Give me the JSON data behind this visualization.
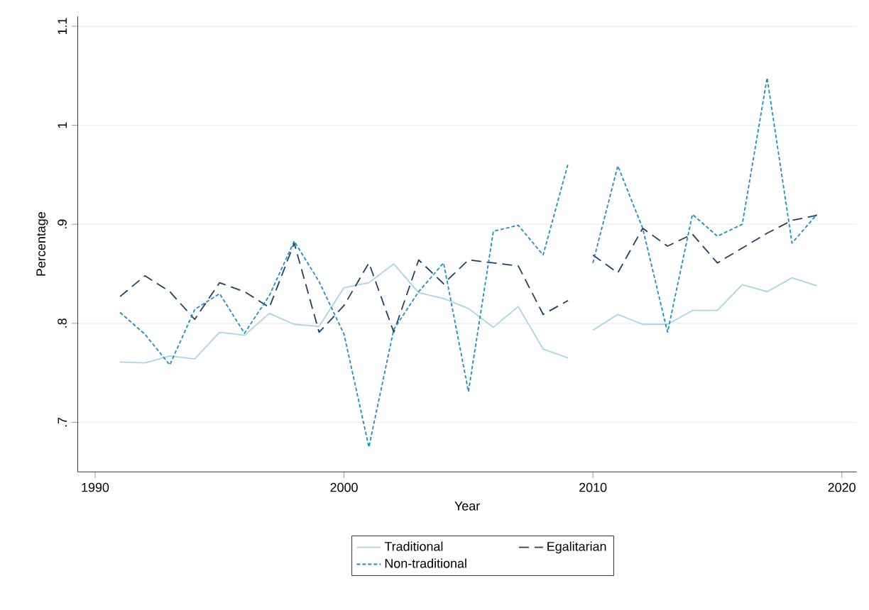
{
  "chart_data": {
    "type": "line",
    "xlabel": "Year",
    "ylabel": "Percentage",
    "x": [
      1991,
      1992,
      1993,
      1994,
      1995,
      1996,
      1997,
      1998,
      1999,
      2000,
      2001,
      2002,
      2003,
      2004,
      2005,
      2006,
      2007,
      2008,
      2009,
      2009.5,
      2010,
      2011,
      2012,
      2013,
      2014,
      2015,
      2016,
      2017,
      2018,
      2019
    ],
    "series": [
      {
        "name": "Traditional",
        "color": "#a8d5e6",
        "line_style": "solid",
        "values": [
          0.761,
          0.76,
          0.767,
          0.764,
          0.791,
          0.788,
          0.81,
          0.799,
          0.797,
          0.836,
          0.841,
          0.86,
          0.831,
          0.825,
          0.815,
          0.796,
          0.817,
          0.774,
          0.765,
          null,
          0.793,
          0.809,
          0.799,
          0.799,
          0.813,
          0.813,
          0.839,
          0.832,
          0.846,
          0.838
        ]
      },
      {
        "name": "Egalitarian",
        "color": "#1f3f66",
        "line_style": "dashed",
        "values": [
          0.827,
          0.848,
          0.832,
          0.804,
          0.841,
          0.832,
          0.816,
          0.881,
          0.791,
          0.818,
          0.861,
          0.791,
          0.864,
          0.84,
          0.864,
          0.861,
          0.858,
          0.809,
          0.823,
          null,
          0.869,
          0.851,
          0.896,
          0.878,
          0.89,
          0.861,
          0.876,
          0.891,
          0.904,
          0.909
        ]
      },
      {
        "name": "Non-traditional",
        "color": "#1b8fc4",
        "line_style": "dotted",
        "values": [
          0.811,
          0.789,
          0.758,
          0.814,
          0.83,
          0.79,
          0.828,
          0.883,
          0.842,
          0.789,
          0.675,
          0.794,
          0.832,
          0.861,
          0.731,
          0.893,
          0.899,
          0.869,
          0.961,
          null,
          0.861,
          0.959,
          0.896,
          0.791,
          0.91,
          0.888,
          0.9,
          1.048,
          0.881,
          0.91
        ]
      }
    ],
    "xlim": [
      1989.3,
      2020.6
    ],
    "ylim": [
      0.65,
      1.11
    ],
    "xticks": [
      1990,
      2000,
      2010,
      2020
    ],
    "yticks": [
      {
        "value": 0.7,
        "label": ".7"
      },
      {
        "value": 0.8,
        "label": ".8"
      },
      {
        "value": 0.9,
        "label": ".9"
      },
      1,
      1.1
    ],
    "grid": "y",
    "legend": "bottom",
    "marker": "none"
  }
}
